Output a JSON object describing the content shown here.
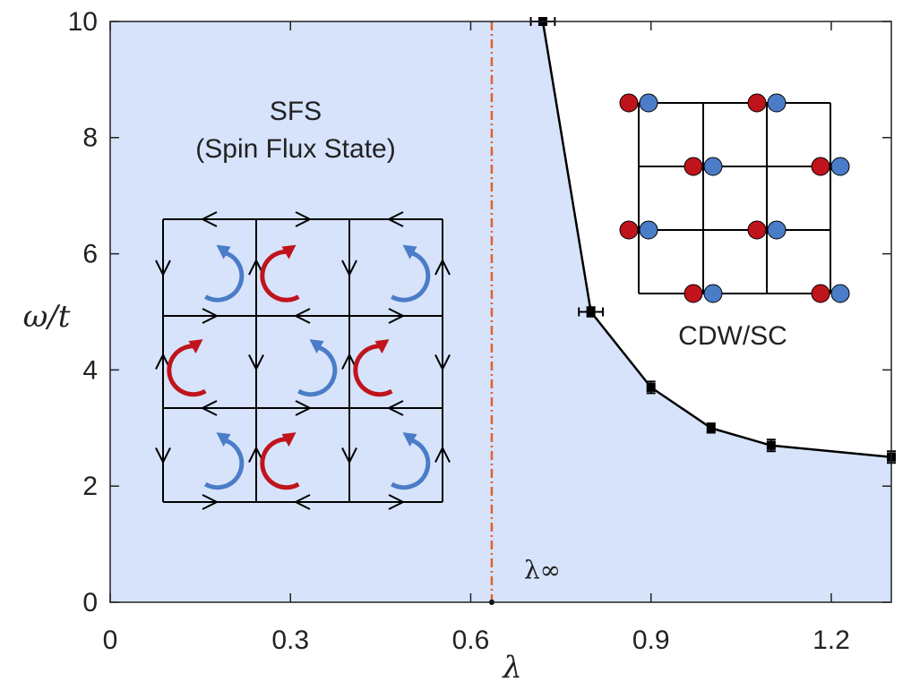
{
  "chart_data": {
    "type": "line",
    "x_label": "λ",
    "y_label": "ω/t",
    "xlim": [
      0,
      1.3
    ],
    "ylim": [
      0,
      10
    ],
    "xticks": [
      0,
      0.3,
      0.6,
      0.9,
      1.2
    ],
    "yticks": [
      0,
      2,
      4,
      6,
      8,
      10
    ],
    "fill_color": "#d6e3fb",
    "series": [
      {
        "color": "#000000",
        "x": [
          0.72,
          0.8,
          0.9,
          1.0,
          1.1,
          1.3
        ],
        "values": [
          10,
          5,
          3.7,
          3.0,
          2.7,
          2.5
        ],
        "xerr": [
          0.02,
          0.02,
          0.005,
          0.005,
          0.005,
          0.005
        ],
        "yerr": [
          0.05,
          0.08,
          0.1,
          0.08,
          0.1,
          0.1
        ]
      }
    ],
    "vline": {
      "x": 0.635,
      "color": "#e0622a",
      "label": "λ∞"
    },
    "annotations": [
      "SFS",
      "(Spin Flux State)",
      "CDW/SC"
    ]
  }
}
